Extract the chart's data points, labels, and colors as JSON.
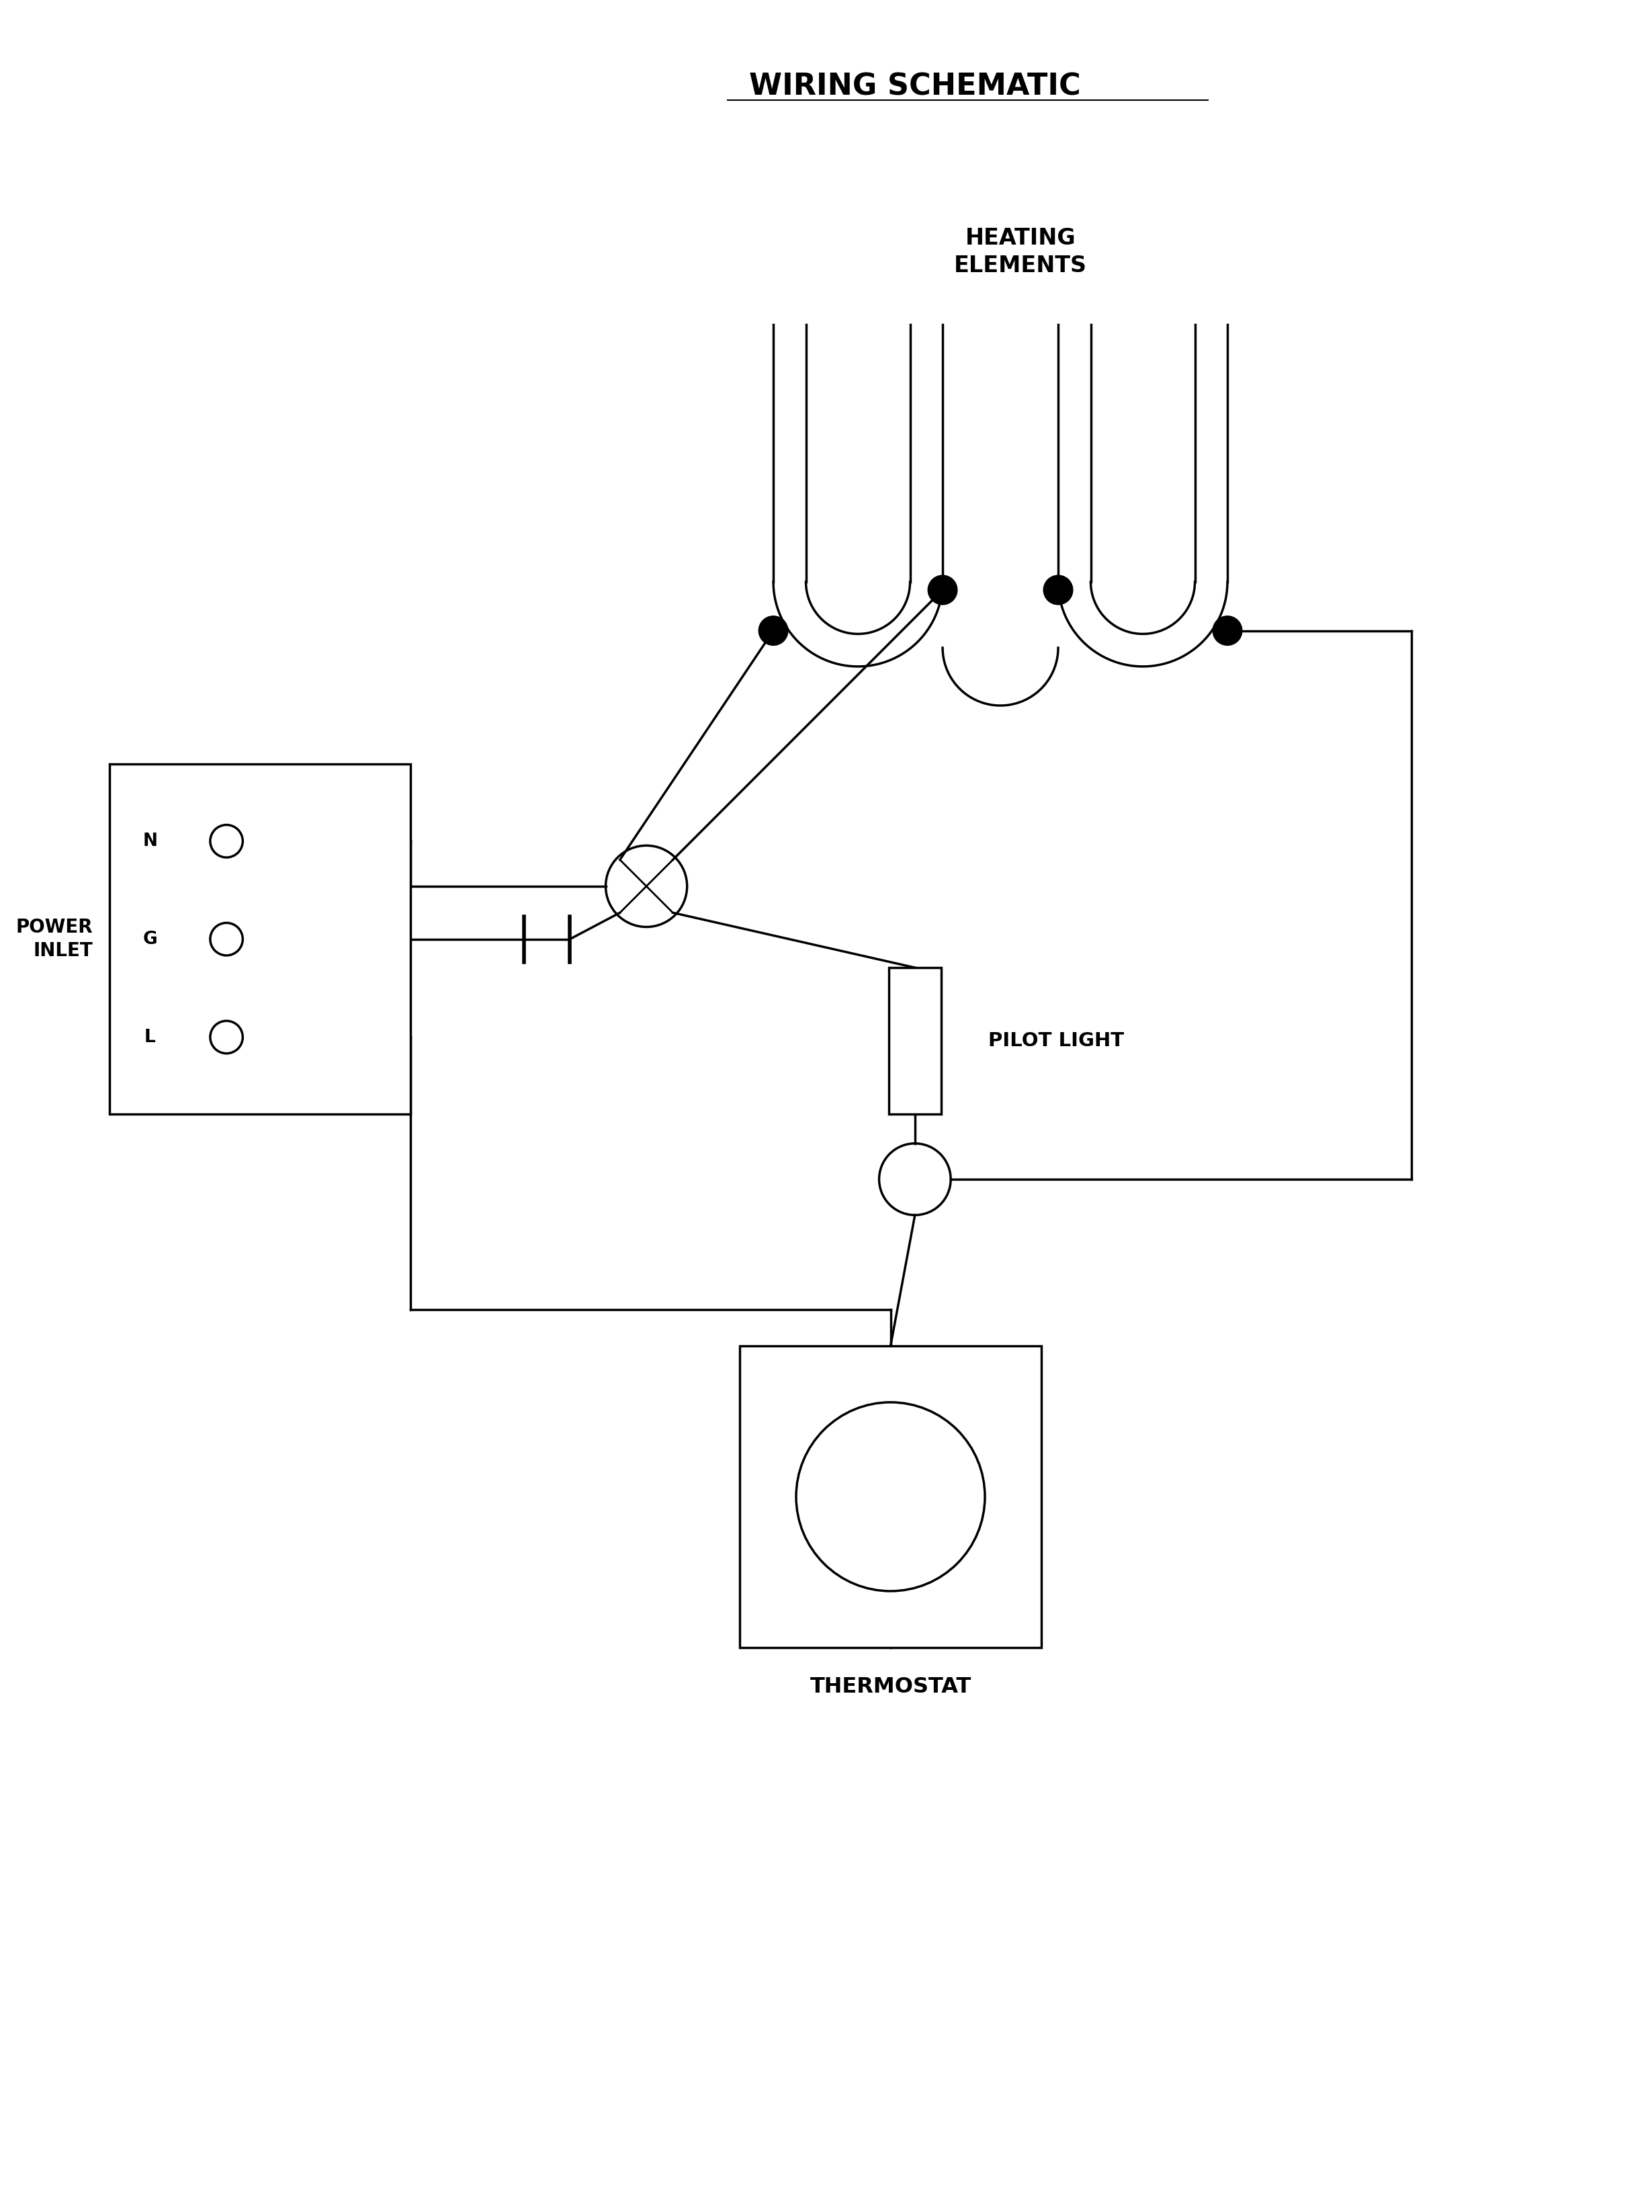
{
  "title": "WIRING SCHEMATIC",
  "background_color": "#ffffff",
  "line_color": "#000000",
  "line_width": 2.5,
  "fig_width": 24.59,
  "fig_height": 32.92,
  "labels": {
    "heating_elements": "HEATING\nELEMENTS",
    "power_inlet": "POWER\nINLET",
    "pilot_light": "PILOT LIGHT",
    "thermostat": "THERMOSTAT",
    "N": "N",
    "G": "G",
    "L": "L"
  }
}
